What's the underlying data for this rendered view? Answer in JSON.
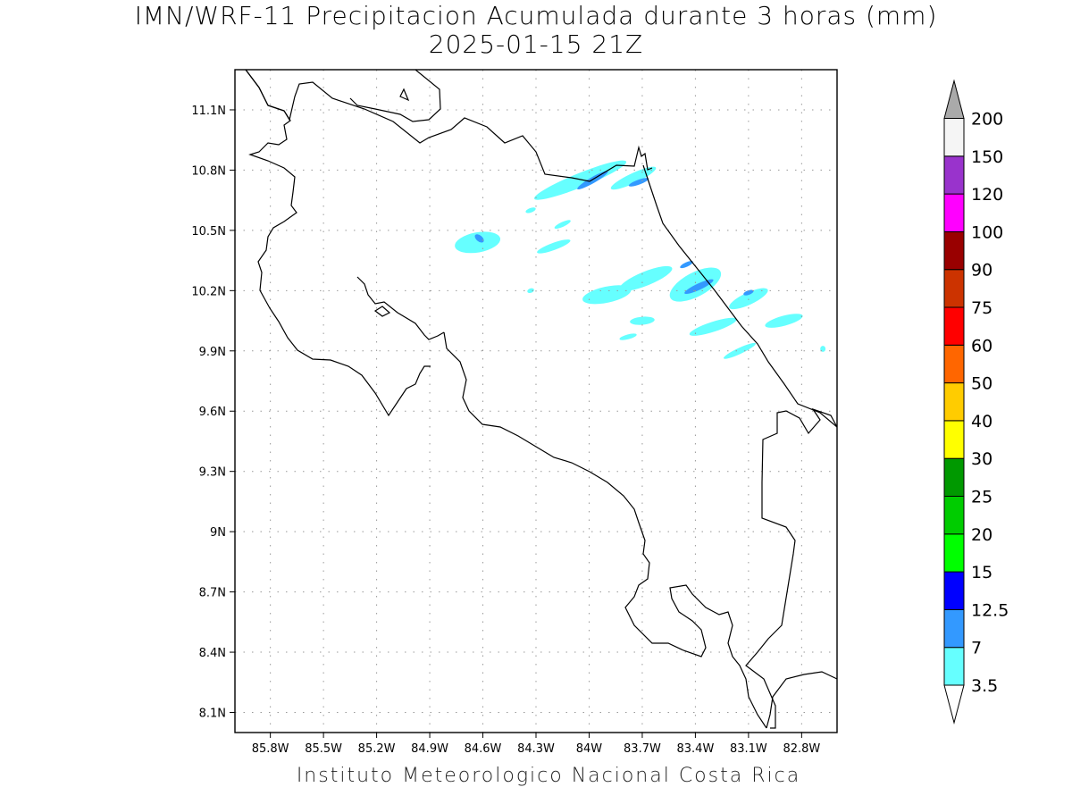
{
  "title": {
    "line1": "IMN/WRF-11 Precipitacion Acumulada durante 3 horas (mm)",
    "line2": "2025-01-15 21Z"
  },
  "footer": "Instituto Meteorologico Nacional Costa Rica",
  "map": {
    "lon_range": [
      -86.0,
      -82.6
    ],
    "lat_range": [
      8.0,
      11.3
    ],
    "lon_ticks": [
      {
        "value": -85.8,
        "label": "85.8W"
      },
      {
        "value": -85.5,
        "label": "85.5W"
      },
      {
        "value": -85.2,
        "label": "85.2W"
      },
      {
        "value": -84.9,
        "label": "84.9W"
      },
      {
        "value": -84.6,
        "label": "84.6W"
      },
      {
        "value": -84.3,
        "label": "84.3W"
      },
      {
        "value": -84.0,
        "label": "84W"
      },
      {
        "value": -83.7,
        "label": "83.7W"
      },
      {
        "value": -83.4,
        "label": "83.4W"
      },
      {
        "value": -83.1,
        "label": "83.1W"
      },
      {
        "value": -82.8,
        "label": "82.8W"
      }
    ],
    "lat_ticks": [
      {
        "value": 11.1,
        "label": "11.1N"
      },
      {
        "value": 10.8,
        "label": "10.8N"
      },
      {
        "value": 10.5,
        "label": "10.5N"
      },
      {
        "value": 10.2,
        "label": "10.2N"
      },
      {
        "value": 9.9,
        "label": "9.9N"
      },
      {
        "value": 9.6,
        "label": "9.6N"
      },
      {
        "value": 9.3,
        "label": "9.3N"
      },
      {
        "value": 9.0,
        "label": "9N"
      },
      {
        "value": 8.7,
        "label": "8.7N"
      },
      {
        "value": 8.4,
        "label": "8.4N"
      },
      {
        "value": 8.1,
        "label": "8.1N"
      }
    ],
    "grid": true,
    "precip_cells": [
      {
        "lon": -84.05,
        "lat": 10.75,
        "rx": 0.28,
        "ry": 0.035,
        "rot": -22,
        "level": "3.5"
      },
      {
        "lon": -83.75,
        "lat": 10.76,
        "rx": 0.14,
        "ry": 0.025,
        "rot": -25,
        "level": "3.5"
      },
      {
        "lon": -83.98,
        "lat": 10.75,
        "rx": 0.1,
        "ry": 0.015,
        "rot": -30,
        "level": "7"
      },
      {
        "lon": -83.72,
        "lat": 10.74,
        "rx": 0.06,
        "ry": 0.012,
        "rot": -20,
        "level": "7"
      },
      {
        "lon": -84.63,
        "lat": 10.44,
        "rx": 0.13,
        "ry": 0.05,
        "rot": -10,
        "level": "3.5"
      },
      {
        "lon": -84.62,
        "lat": 10.46,
        "rx": 0.03,
        "ry": 0.015,
        "rot": 40,
        "level": "7"
      },
      {
        "lon": -84.2,
        "lat": 10.42,
        "rx": 0.1,
        "ry": 0.018,
        "rot": -20,
        "level": "3.5"
      },
      {
        "lon": -84.15,
        "lat": 10.53,
        "rx": 0.05,
        "ry": 0.012,
        "rot": -25,
        "level": "3.5"
      },
      {
        "lon": -83.9,
        "lat": 10.18,
        "rx": 0.14,
        "ry": 0.04,
        "rot": -12,
        "level": "3.5"
      },
      {
        "lon": -83.68,
        "lat": 10.26,
        "rx": 0.16,
        "ry": 0.035,
        "rot": -22,
        "level": "3.5"
      },
      {
        "lon": -83.4,
        "lat": 10.23,
        "rx": 0.16,
        "ry": 0.06,
        "rot": -28,
        "level": "3.5"
      },
      {
        "lon": -83.38,
        "lat": 10.22,
        "rx": 0.09,
        "ry": 0.016,
        "rot": -25,
        "level": "7"
      },
      {
        "lon": -83.45,
        "lat": 10.33,
        "rx": 0.04,
        "ry": 0.01,
        "rot": -25,
        "level": "7"
      },
      {
        "lon": -83.1,
        "lat": 10.16,
        "rx": 0.12,
        "ry": 0.03,
        "rot": -25,
        "level": "3.5"
      },
      {
        "lon": -83.1,
        "lat": 10.19,
        "rx": 0.03,
        "ry": 0.01,
        "rot": -20,
        "level": "7"
      },
      {
        "lon": -83.3,
        "lat": 10.02,
        "rx": 0.14,
        "ry": 0.025,
        "rot": -18,
        "level": "3.5"
      },
      {
        "lon": -82.9,
        "lat": 10.05,
        "rx": 0.11,
        "ry": 0.025,
        "rot": -15,
        "level": "3.5"
      },
      {
        "lon": -83.15,
        "lat": 9.9,
        "rx": 0.1,
        "ry": 0.015,
        "rot": -25,
        "level": "3.5"
      },
      {
        "lon": -83.7,
        "lat": 10.05,
        "rx": 0.07,
        "ry": 0.02,
        "rot": -5,
        "level": "3.5"
      },
      {
        "lon": -83.78,
        "lat": 9.97,
        "rx": 0.05,
        "ry": 0.012,
        "rot": -15,
        "level": "3.5"
      },
      {
        "lon": -82.68,
        "lat": 9.91,
        "rx": 0.015,
        "ry": 0.015,
        "rot": 0,
        "level": "3.5"
      },
      {
        "lon": -84.33,
        "lat": 10.6,
        "rx": 0.03,
        "ry": 0.008,
        "rot": -20,
        "level": "3.5"
      },
      {
        "lon": -84.33,
        "lat": 10.2,
        "rx": 0.02,
        "ry": 0.01,
        "rot": -20,
        "level": "3.5"
      }
    ]
  },
  "legend": {
    "levels": [
      "3.5",
      "7",
      "12.5",
      "15",
      "20",
      "25",
      "30",
      "40",
      "50",
      "60",
      "75",
      "90",
      "100",
      "120",
      "150",
      "200"
    ],
    "colors": [
      "#66ffff",
      "#3399ff",
      "#0000ff",
      "#00ff00",
      "#00cc00",
      "#009900",
      "#ffff00",
      "#ffcc00",
      "#ff6600",
      "#ff0000",
      "#cc3300",
      "#990000",
      "#ff00ff",
      "#9933cc",
      "#f5f5f5",
      "#aaaaaa"
    ],
    "cell_colors_bottom_to_top": [
      "#66ffff",
      "#3399ff",
      "#0000ff",
      "#00ff00",
      "#00cc00",
      "#009900",
      "#ffff00",
      "#ffcc00",
      "#ff6600",
      "#ff0000",
      "#cc3300",
      "#990000",
      "#ff00ff",
      "#9933cc",
      "#f5f5f5"
    ],
    "top_arrow_color": "#aaaaaa",
    "bottom_arrow_color": "#ffffff"
  }
}
